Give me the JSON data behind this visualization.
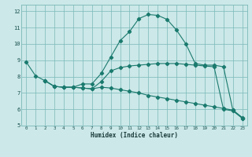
{
  "xlabel": "Humidex (Indice chaleur)",
  "xlim": [
    -0.5,
    23.5
  ],
  "ylim": [
    5,
    12.4
  ],
  "xticks": [
    0,
    1,
    2,
    3,
    4,
    5,
    6,
    7,
    8,
    9,
    10,
    11,
    12,
    13,
    14,
    15,
    16,
    17,
    18,
    19,
    20,
    21,
    22,
    23
  ],
  "yticks": [
    5,
    6,
    7,
    8,
    9,
    10,
    11,
    12
  ],
  "bg_color": "#cce8e8",
  "grid_color": "#7ab8b8",
  "line_color": "#1a7a6e",
  "line1_x": [
    0,
    1,
    2,
    3,
    4,
    5,
    6,
    7,
    8,
    9,
    10,
    11,
    12,
    13,
    14,
    15,
    16,
    17,
    18,
    19,
    20,
    21,
    22,
    23
  ],
  "line1_y": [
    8.9,
    8.05,
    7.75,
    7.4,
    7.35,
    7.35,
    7.55,
    7.55,
    8.2,
    9.2,
    10.2,
    10.75,
    11.55,
    11.8,
    11.75,
    11.5,
    10.85,
    10.0,
    8.8,
    8.7,
    8.7,
    8.6,
    5.95,
    5.5
  ],
  "line2_x": [
    2,
    3,
    4,
    5,
    6,
    7,
    8,
    9,
    10,
    11,
    12,
    13,
    14,
    15,
    16,
    17,
    18,
    19,
    20,
    21,
    22,
    23
  ],
  "line2_y": [
    7.75,
    7.4,
    7.35,
    7.35,
    7.3,
    7.25,
    7.7,
    8.35,
    8.55,
    8.65,
    8.7,
    8.75,
    8.8,
    8.8,
    8.8,
    8.75,
    8.7,
    8.65,
    8.6,
    6.0,
    5.9,
    5.45
  ],
  "line3_x": [
    2,
    3,
    4,
    5,
    6,
    7,
    8,
    9,
    10,
    11,
    12,
    13,
    14,
    15,
    16,
    17,
    18,
    19,
    20,
    21,
    22,
    23
  ],
  "line3_y": [
    7.75,
    7.4,
    7.35,
    7.35,
    7.3,
    7.25,
    7.35,
    7.3,
    7.2,
    7.1,
    7.0,
    6.85,
    6.75,
    6.65,
    6.55,
    6.45,
    6.35,
    6.25,
    6.15,
    6.05,
    5.95,
    5.45
  ]
}
